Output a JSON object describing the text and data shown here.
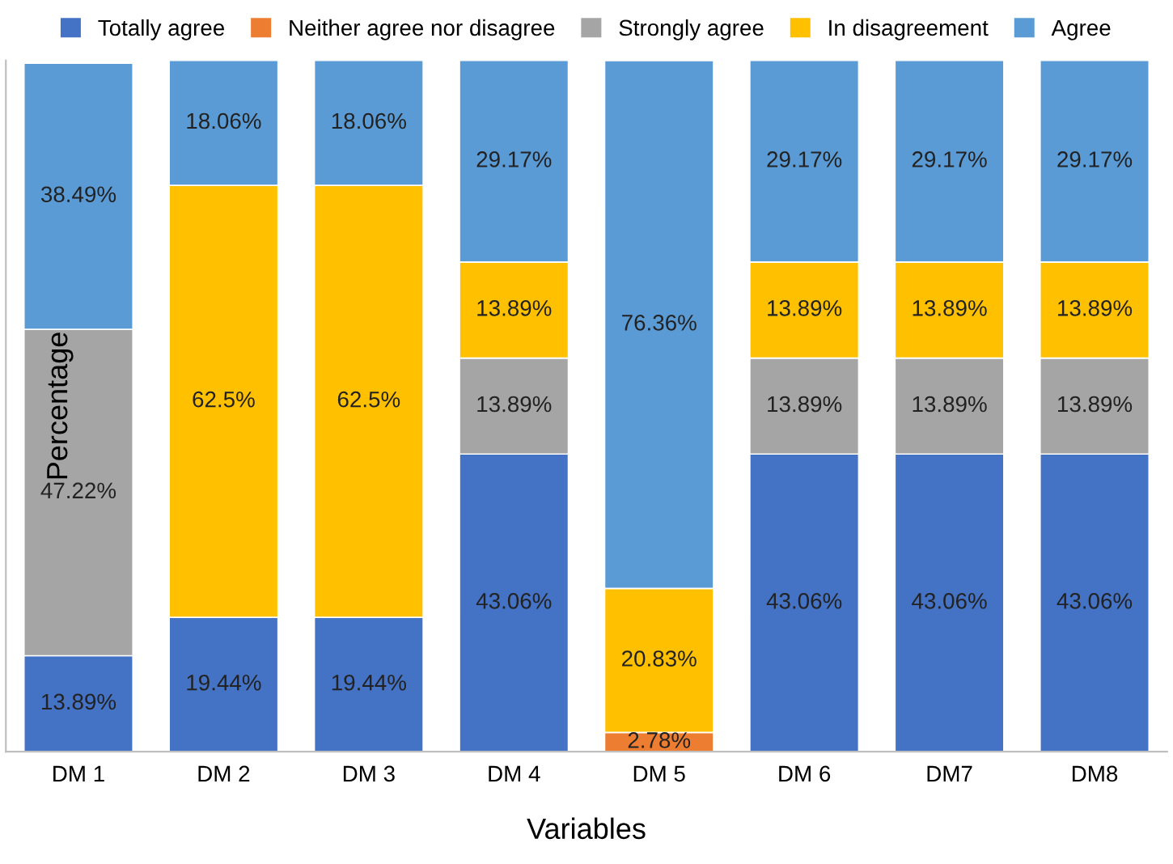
{
  "chart_data": {
    "type": "bar",
    "stacked": true,
    "xlabel": "Variables",
    "ylabel": "Percentage",
    "categories": [
      "DM 1",
      "DM 2",
      "DM 3",
      "DM 4",
      "DM 5",
      "DM 6",
      "DM7",
      "DM8"
    ],
    "ylim": [
      0,
      100
    ],
    "tick_labels": "x",
    "legend": "top",
    "grid": false,
    "series": [
      {
        "name": "Totally agree",
        "color": "#4472c4",
        "values": [
          13.89,
          19.44,
          19.44,
          43.06,
          null,
          43.06,
          43.06,
          43.06
        ],
        "value_labels": [
          "13.89%",
          "19.44%",
          "19.44%",
          "43.06%",
          null,
          "43.06%",
          "43.06%",
          "43.06%"
        ]
      },
      {
        "name": "Neither agree nor disagree",
        "color": "#ed7d31",
        "values": [
          null,
          null,
          null,
          null,
          2.78,
          null,
          null,
          null
        ],
        "value_labels": [
          null,
          null,
          null,
          null,
          "2.78%",
          null,
          null,
          null
        ]
      },
      {
        "name": "Strongly agree",
        "color": "#a5a5a5",
        "values": [
          47.22,
          null,
          null,
          13.89,
          null,
          13.89,
          13.89,
          13.89
        ],
        "value_labels": [
          "47.22%",
          null,
          null,
          "13.89%",
          null,
          "13.89%",
          "13.89%",
          "13.89%"
        ]
      },
      {
        "name": "In disagreement",
        "color": "#ffc000",
        "values": [
          null,
          62.5,
          62.5,
          13.89,
          20.83,
          13.89,
          13.89,
          13.89
        ],
        "value_labels": [
          null,
          "62.5%",
          "62.5%",
          "13.89%",
          "20.83%",
          "13.89%",
          "13.89%",
          "13.89%"
        ]
      },
      {
        "name": "Agree",
        "color": "#5b9bd5",
        "values": [
          38.49,
          18.06,
          18.06,
          29.17,
          76.36,
          29.17,
          29.17,
          29.17
        ],
        "value_labels": [
          "38.49%",
          "18.06%",
          "18.06%",
          "29.17%",
          "76.36%",
          "29.17%",
          "29.17%",
          "29.17%"
        ]
      }
    ]
  }
}
